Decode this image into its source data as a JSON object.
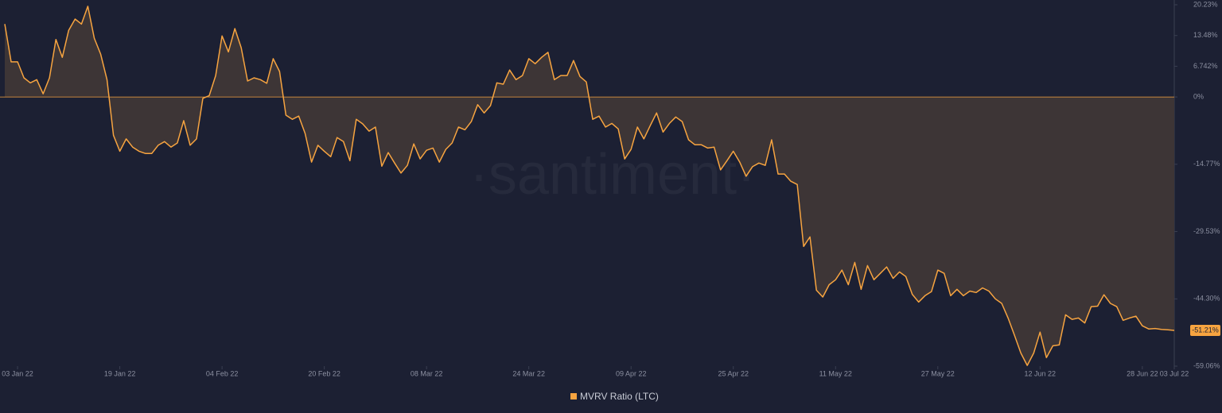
{
  "chart_data": {
    "type": "area",
    "watermark": "·santiment·",
    "grid": false,
    "zero_line": true,
    "x": [
      "2022-01-01",
      "2022-01-02",
      "2022-01-03",
      "2022-01-04",
      "2022-01-05",
      "2022-01-06",
      "2022-01-07",
      "2022-01-08",
      "2022-01-09",
      "2022-01-10",
      "2022-01-11",
      "2022-01-12",
      "2022-01-13",
      "2022-01-14",
      "2022-01-15",
      "2022-01-16",
      "2022-01-17",
      "2022-01-18",
      "2022-01-19",
      "2022-01-20",
      "2022-01-21",
      "2022-01-22",
      "2022-01-23",
      "2022-01-24",
      "2022-01-25",
      "2022-01-26",
      "2022-01-27",
      "2022-01-28",
      "2022-01-29",
      "2022-01-30",
      "2022-01-31",
      "2022-02-01",
      "2022-02-02",
      "2022-02-03",
      "2022-02-04",
      "2022-02-05",
      "2022-02-06",
      "2022-02-07",
      "2022-02-08",
      "2022-02-09",
      "2022-02-10",
      "2022-02-11",
      "2022-02-12",
      "2022-02-13",
      "2022-02-14",
      "2022-02-15",
      "2022-02-16",
      "2022-02-17",
      "2022-02-18",
      "2022-02-19",
      "2022-02-20",
      "2022-02-21",
      "2022-02-22",
      "2022-02-23",
      "2022-02-24",
      "2022-02-25",
      "2022-02-26",
      "2022-02-27",
      "2022-02-28",
      "2022-03-01",
      "2022-03-02",
      "2022-03-03",
      "2022-03-04",
      "2022-03-05",
      "2022-03-06",
      "2022-03-07",
      "2022-03-08",
      "2022-03-09",
      "2022-03-10",
      "2022-03-11",
      "2022-03-12",
      "2022-03-13",
      "2022-03-14",
      "2022-03-15",
      "2022-03-16",
      "2022-03-17",
      "2022-03-18",
      "2022-03-19",
      "2022-03-20",
      "2022-03-21",
      "2022-03-22",
      "2022-03-23",
      "2022-03-24",
      "2022-03-25",
      "2022-03-26",
      "2022-03-27",
      "2022-03-28",
      "2022-03-29",
      "2022-03-30",
      "2022-03-31",
      "2022-04-01",
      "2022-04-02",
      "2022-04-03",
      "2022-04-04",
      "2022-04-05",
      "2022-04-06",
      "2022-04-07",
      "2022-04-08",
      "2022-04-09",
      "2022-04-10",
      "2022-04-11",
      "2022-04-12",
      "2022-04-13",
      "2022-04-14",
      "2022-04-15",
      "2022-04-16",
      "2022-04-17",
      "2022-04-18",
      "2022-04-19",
      "2022-04-20",
      "2022-04-21",
      "2022-04-22",
      "2022-04-23",
      "2022-04-24",
      "2022-04-25",
      "2022-04-26",
      "2022-04-27",
      "2022-04-28",
      "2022-04-29",
      "2022-04-30",
      "2022-05-01",
      "2022-05-02",
      "2022-05-03",
      "2022-05-04",
      "2022-05-05",
      "2022-05-06",
      "2022-05-07",
      "2022-05-08",
      "2022-05-09",
      "2022-05-10",
      "2022-05-11",
      "2022-05-12",
      "2022-05-13",
      "2022-05-14",
      "2022-05-15",
      "2022-05-16",
      "2022-05-17",
      "2022-05-18",
      "2022-05-19",
      "2022-05-20",
      "2022-05-21",
      "2022-05-22",
      "2022-05-23",
      "2022-05-24",
      "2022-05-25",
      "2022-05-26",
      "2022-05-27",
      "2022-05-28",
      "2022-05-29",
      "2022-05-30",
      "2022-05-31",
      "2022-06-01",
      "2022-06-02",
      "2022-06-03",
      "2022-06-04",
      "2022-06-05",
      "2022-06-06",
      "2022-06-07",
      "2022-06-08",
      "2022-06-09",
      "2022-06-10",
      "2022-06-11",
      "2022-06-12",
      "2022-06-13",
      "2022-06-14",
      "2022-06-15",
      "2022-06-16",
      "2022-06-17",
      "2022-06-18",
      "2022-06-19",
      "2022-06-20",
      "2022-06-21",
      "2022-06-22",
      "2022-06-23",
      "2022-06-24",
      "2022-06-25",
      "2022-06-26",
      "2022-06-27",
      "2022-06-28",
      "2022-06-29",
      "2022-06-30",
      "2022-07-01",
      "2022-07-02",
      "2022-07-03"
    ],
    "series": [
      {
        "name": "MVRV Ratio (LTC)",
        "color": "#f7a440",
        "fill": "#3d3536",
        "last_label": "-51.21%",
        "values": [
          16.0,
          7.7,
          7.7,
          4.2,
          3.1,
          3.8,
          0.7,
          4.2,
          12.6,
          8.7,
          14.6,
          17.1,
          16.0,
          19.9,
          12.9,
          9.4,
          3.8,
          -8.4,
          -11.9,
          -9.2,
          -11.0,
          -11.9,
          -12.4,
          -12.4,
          -10.6,
          -9.8,
          -11.0,
          -10.1,
          -5.2,
          -10.6,
          -9.2,
          -0.3,
          0.3,
          4.7,
          13.4,
          9.9,
          15.0,
          10.8,
          3.5,
          4.2,
          3.8,
          3.0,
          8.4,
          5.6,
          -4.0,
          -4.9,
          -4.2,
          -8.0,
          -14.3,
          -10.6,
          -11.9,
          -13.1,
          -8.9,
          -9.8,
          -14.0,
          -4.9,
          -5.9,
          -7.5,
          -6.6,
          -15.2,
          -12.2,
          -14.5,
          -16.7,
          -15.0,
          -10.3,
          -13.6,
          -11.7,
          -11.2,
          -14.3,
          -11.5,
          -10.1,
          -6.6,
          -7.2,
          -5.4,
          -1.7,
          -3.5,
          -1.9,
          3.1,
          2.8,
          5.9,
          3.8,
          4.7,
          8.4,
          7.3,
          8.7,
          9.8,
          3.8,
          4.7,
          4.7,
          8.0,
          4.5,
          3.3,
          -4.9,
          -4.2,
          -6.6,
          -5.8,
          -7.0,
          -13.6,
          -11.5,
          -6.6,
          -9.2,
          -6.3,
          -3.5,
          -7.7,
          -5.8,
          -4.4,
          -5.4,
          -9.4,
          -10.5,
          -10.5,
          -11.2,
          -11.0,
          -16.0,
          -14.0,
          -11.9,
          -14.3,
          -17.4,
          -15.3,
          -14.5,
          -15.0,
          -9.4,
          -16.9,
          -16.9,
          -18.5,
          -19.2,
          -32.8,
          -30.7,
          -42.4,
          -43.9,
          -41.2,
          -40.1,
          -38.0,
          -41.2,
          -36.3,
          -42.2,
          -37.0,
          -40.1,
          -38.7,
          -37.3,
          -39.8,
          -38.4,
          -39.4,
          -43.3,
          -45.0,
          -43.6,
          -42.7,
          -38.0,
          -38.7,
          -43.6,
          -42.2,
          -43.6,
          -42.6,
          -42.9,
          -41.9,
          -42.6,
          -44.3,
          -45.3,
          -48.5,
          -52.3,
          -56.2,
          -58.9,
          -56.2,
          -51.6,
          -57.2,
          -54.6,
          -54.4,
          -47.8,
          -48.8,
          -48.5,
          -49.6,
          -46.0,
          -45.9,
          -43.4,
          -45.3,
          -46.0,
          -49.0,
          -48.5,
          -48.1,
          -50.2,
          -50.9,
          -50.8,
          -51.0,
          -51.1,
          -51.21
        ]
      }
    ],
    "xlim": [
      "2022-01-01",
      "2022-07-03"
    ],
    "xticks": [
      {
        "value": "2022-01-03",
        "label": "03 Jan 22"
      },
      {
        "value": "2022-01-19",
        "label": "19 Jan 22"
      },
      {
        "value": "2022-02-04",
        "label": "04 Feb 22"
      },
      {
        "value": "2022-02-20",
        "label": "20 Feb 22"
      },
      {
        "value": "2022-03-08",
        "label": "08 Mar 22"
      },
      {
        "value": "2022-03-24",
        "label": "24 Mar 22"
      },
      {
        "value": "2022-04-09",
        "label": "09 Apr 22"
      },
      {
        "value": "2022-04-25",
        "label": "25 Apr 22"
      },
      {
        "value": "2022-05-11",
        "label": "11 May 22"
      },
      {
        "value": "2022-05-27",
        "label": "27 May 22"
      },
      {
        "value": "2022-06-12",
        "label": "12 Jun 22"
      },
      {
        "value": "2022-06-28",
        "label": "28 Jun 22"
      },
      {
        "value": "2022-07-03",
        "label": "03 Jul 22"
      }
    ],
    "ylim": [
      -59.06,
      20.23
    ],
    "yticks": [
      {
        "value": 20.23,
        "label": "20.23%"
      },
      {
        "value": 13.48,
        "label": "13.48%"
      },
      {
        "value": 6.742,
        "label": "6.742%"
      },
      {
        "value": 0,
        "label": "0%"
      },
      {
        "value": -14.77,
        "label": "-14.77%"
      },
      {
        "value": -29.53,
        "label": "-29.53%"
      },
      {
        "value": -44.3,
        "label": "-44.30%"
      },
      {
        "value": -59.06,
        "label": "-59.06%"
      }
    ],
    "legend": "bottom"
  }
}
